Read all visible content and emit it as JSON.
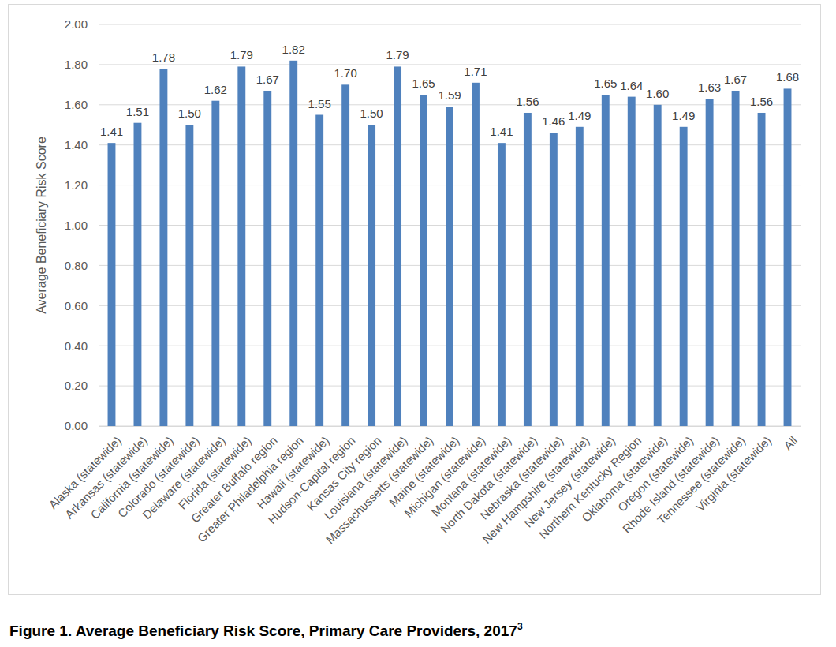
{
  "chart_data": {
    "type": "bar",
    "title": "Figure 1. Average Beneficiary Risk Score, Primary Care Providers, 2017",
    "title_footnote": "3",
    "y_label": "Average Beneficiary Risk Score",
    "categories": [
      "Alaska (statewide)",
      "Arkansas (statewide)",
      "California (statewide)",
      "Colorado (statewide)",
      "Delaware (statewide)",
      "Florida (statewide)",
      "Greater Buffalo region",
      "Greater Philadelphia region",
      "Hawaii (statewide)",
      "Hudson-Capital region",
      "Kansas City region",
      "Louisiana (statewide)",
      "Massachussetts (statewide)",
      "Maine (statewide)",
      "Michigan (statewide)",
      "Montana (statewide)",
      "North Dakota (statewide)",
      "Nebraska (statewide)",
      "New Hampshire (statewide)",
      "New Jersey (statewide)",
      "Northern Kentucky Region",
      "Oklahoma (statewide)",
      "Oregon (statewide)",
      "Rhode Island (statewide)",
      "Tennessee (statewide)",
      "Virginia (statewide)",
      "All"
    ],
    "values": [
      1.41,
      1.51,
      1.78,
      1.5,
      1.62,
      1.79,
      1.67,
      1.82,
      1.55,
      1.7,
      1.5,
      1.79,
      1.65,
      1.59,
      1.71,
      1.41,
      1.56,
      1.46,
      1.49,
      1.65,
      1.64,
      1.6,
      1.49,
      1.63,
      1.67,
      1.56,
      1.68
    ],
    "value_labels": [
      "1.41",
      "1.51",
      "1.78",
      "1.50",
      "1.62",
      "1.79",
      "1.67",
      "1.82",
      "1.55",
      "1.70",
      "1.50",
      "1.79",
      "1.65",
      "1.59",
      "1.71",
      "1.41",
      "1.56",
      "1.46",
      "1.49",
      "1.65",
      "1.64",
      "1.60",
      "1.49",
      "1.63",
      "1.67",
      "1.56",
      "1.68"
    ],
    "color": "#4f81bd",
    "ylim": [
      0,
      2
    ],
    "yticks": [
      {
        "value": 0,
        "label": "0.00"
      },
      {
        "value": 0.2,
        "label": "0.20"
      },
      {
        "value": 0.4,
        "label": "0.40"
      },
      {
        "value": 0.6,
        "label": "0.60"
      },
      {
        "value": 0.8,
        "label": "0.80"
      },
      {
        "value": 1,
        "label": "1.00"
      },
      {
        "value": 1.2,
        "label": "1.20"
      },
      {
        "value": 1.4,
        "label": "1.40"
      },
      {
        "value": 1.6,
        "label": "1.60"
      },
      {
        "value": 1.8,
        "label": "1.80"
      },
      {
        "value": 2,
        "label": "2.00"
      }
    ],
    "grid": true,
    "data_labels": true
  }
}
